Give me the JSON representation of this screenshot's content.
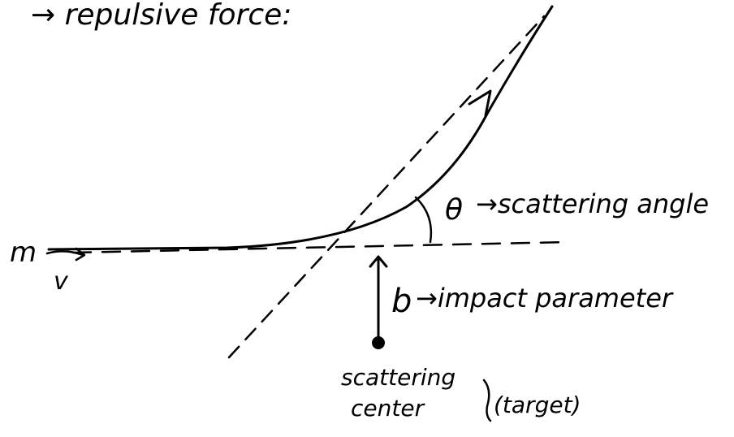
{
  "labels": {
    "heading": "→ repulsive force:",
    "mass": "m",
    "velocity": "v",
    "theta_symbol": "θ",
    "theta_desc": "→scattering angle",
    "b_symbol": "b",
    "b_desc": "→impact parameter",
    "center_line1": "scattering",
    "center_line2": "center",
    "target": "(target)"
  },
  "colors": {
    "ink": "#000000",
    "paper": "#ffffff"
  }
}
